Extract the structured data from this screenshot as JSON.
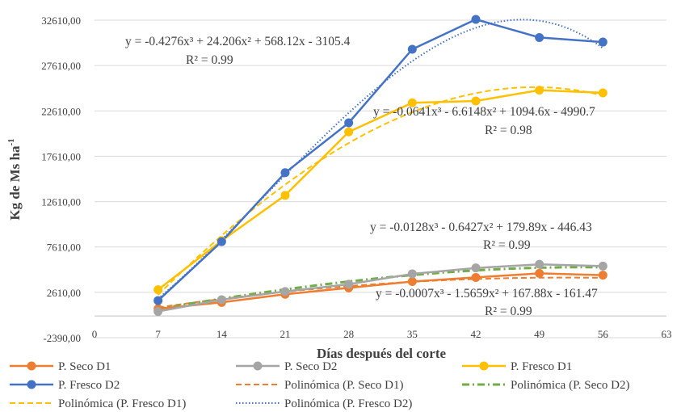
{
  "chart_data": {
    "type": "line",
    "xlabel": "Días después del corte",
    "ylabel": "Kg de Ms ha",
    "ylabel_sup": "-1",
    "xlim": [
      0,
      63
    ],
    "ylim": [
      -2390,
      32610
    ],
    "x_ticks": [
      0,
      7,
      14,
      21,
      28,
      35,
      42,
      49,
      56,
      63
    ],
    "y_ticks": [
      -2390,
      2610,
      7610,
      12610,
      17610,
      22610,
      27610,
      32610
    ],
    "y_tick_labels": [
      "-2390,00",
      "2610,00",
      "7610,00",
      "12610,00",
      "17610,00",
      "22610,00",
      "27610,00",
      "32610,00"
    ],
    "grid": "horizontal",
    "legend_position": "bottom",
    "x": [
      7,
      14,
      21,
      28,
      35,
      42,
      49,
      56
    ],
    "series": [
      {
        "name": "P. Seco D1",
        "color": "#ED7D31",
        "values": [
          800,
          1500,
          2400,
          3100,
          3800,
          4250,
          4700,
          4500
        ]
      },
      {
        "name": "P. Seco D2",
        "color": "#A5A5A5",
        "values": [
          500,
          1800,
          2700,
          3500,
          4650,
          5300,
          5700,
          5500
        ]
      },
      {
        "name": "P. Fresco D1",
        "color": "#FFC000",
        "values": [
          2900,
          8300,
          13300,
          20300,
          23500,
          23700,
          24900,
          24600
        ]
      },
      {
        "name": "P. Fresco D2",
        "color": "#4472C4",
        "values": [
          1700,
          8200,
          15800,
          21300,
          29400,
          32700,
          30700,
          30200
        ]
      }
    ],
    "trendlines": [
      {
        "name": "Polinómica (P. Seco D1)",
        "color": "#ED7D31",
        "style": "dash",
        "coef": [
          -0.0007,
          -1.5659,
          167.88,
          -161.47
        ]
      },
      {
        "name": "Polinómica (P. Seco D2)",
        "color": "#70AD47",
        "style": "dashdot",
        "coef": [
          -0.0128,
          -0.6427,
          179.89,
          -446.43
        ]
      },
      {
        "name": "Polinómica (P. Fresco D1)",
        "color": "#FFC000",
        "style": "dash",
        "coef": [
          -0.0641,
          -6.6148,
          1094.6,
          -4990.7
        ]
      },
      {
        "name": "Polinómica (P. Fresco D2)",
        "color": "#4472C4",
        "style": "dot",
        "coef": [
          -0.4276,
          24.206,
          568.12,
          -3105.4
        ]
      }
    ],
    "equations": [
      {
        "eq": "y = -0.4276x³ + 24.206x² + 568.12x - 3105.4",
        "r2": "R² = 0.99"
      },
      {
        "eq": "y = -0.0641x³ - 6.6148x² + 1094.6x - 4990.7",
        "r2": "R² = 0.98"
      },
      {
        "eq": "y = -0.0128x³ - 0.6427x² + 179.89x - 446.43",
        "r2": "R² = 0.99"
      },
      {
        "eq": "y = -0.0007x³ - 1.5659x² + 167.88x - 161.47",
        "r2": "R² = 0.99"
      }
    ]
  }
}
